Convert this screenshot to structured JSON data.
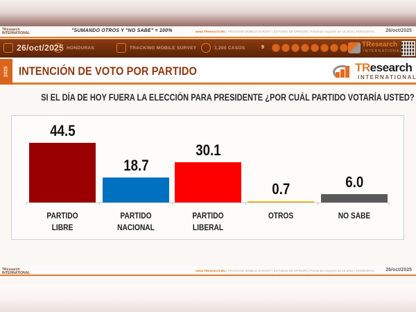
{
  "top_strip": {
    "logo_text": "TResearch INTERNATIONAL",
    "note": "\"SUMANDO OTROS Y \"NO SABE\" = 100%",
    "credits_site": "www.TResearch.Mx",
    "credits_rest": " | TRACKING MOBILE SURVEY | ESTUDIO DE OPINIÓN | Personas mayores de 18 años | HONDURAS",
    "date": "26/oct/2025"
  },
  "info_bar": {
    "date": "26/oct/2025",
    "country": "HONDURAS",
    "survey_type": "TRACKING MOBILE SURVEY",
    "cases": "1,200 CASOS",
    "number": "9",
    "social_icons": [
      "globe-icon",
      "whatsapp-icon",
      "messenger-icon",
      "telegram-icon",
      "twitter-icon",
      "facebook-icon",
      "linkedin-icon",
      "youtube-icon"
    ],
    "logo_main": "TResearch",
    "logo_sub": "INTERNATIONAL"
  },
  "title_band": {
    "year": "2025",
    "title": "INTENCIÓN DE VOTO POR PARTIDO",
    "brand_tr": "TR",
    "brand_rest": "esearch",
    "brand_sub": "INTERNATIONAL"
  },
  "question": "SI EL DÍA DE HOY FUERA LA ELECCIÓN PARA PRESIDENTE ¿POR CUÁL PARTIDO VOTARÍA USTED?",
  "chart_data": {
    "type": "bar",
    "title": "INTENCIÓN DE VOTO POR PARTIDO",
    "subtitle": "SI EL DÍA DE HOY FUERA LA ELECCIÓN PARA PRESIDENTE ¿POR CUÁL PARTIDO VOTARÍA USTED?",
    "categories": [
      "PARTIDO LIBRE",
      "PARTIDO NACIONAL",
      "PARTIDO LIBERAL",
      "OTROS",
      "NO SABE"
    ],
    "values": [
      44.5,
      18.7,
      30.1,
      0.7,
      6.0
    ],
    "value_labels": [
      "44.5",
      "18.7",
      "30.1",
      "0.7",
      "6.0"
    ],
    "label_lines": [
      [
        "PARTIDO",
        "LIBRE"
      ],
      [
        "PARTIDO",
        "NACIONAL"
      ],
      [
        "PARTIDO",
        "LIBERAL"
      ],
      [
        "OTROS"
      ],
      [
        "NO SABE"
      ]
    ],
    "colors": [
      "#990000",
      "#0070c0",
      "#ff0000",
      "#f2c12e",
      "#595959"
    ],
    "xlabel": "",
    "ylabel": "",
    "ylim": [
      0,
      50
    ],
    "grid": false,
    "legend": "none",
    "annotation": "\"SUMANDO OTROS Y \"NO SABE\" = 100%"
  },
  "footer_strip": {
    "logo_text": "TResearch INTERNATIONAL",
    "credits_site": "www.TResearch.Mx",
    "credits_rest": " | TRACKING MOBILE SURVEY | ESTUDIO DE OPINIÓN | Personas mayores de 18 años | HONDURAS",
    "date": "26/oct/2025"
  }
}
